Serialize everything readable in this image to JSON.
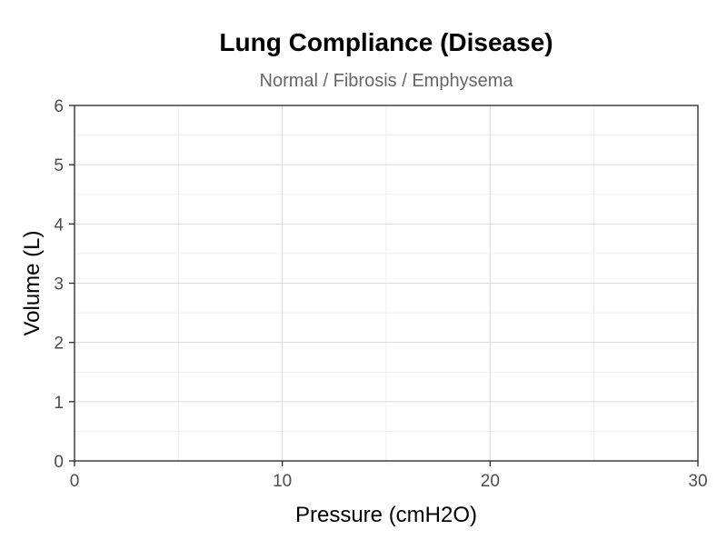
{
  "chart_data": {
    "type": "line",
    "title": "Lung Compliance (Disease)",
    "subtitle": "Normal / Fibrosis / Emphysema",
    "xlabel": "Pressure (cmH2O)",
    "ylabel": "Volume (L)",
    "xlim": [
      0,
      30
    ],
    "ylim": [
      0,
      6
    ],
    "x_ticks": [
      0,
      10,
      20,
      30
    ],
    "y_ticks": [
      0,
      1,
      2,
      3,
      4,
      5,
      6
    ],
    "x_minor_ticks": [
      5,
      15,
      25
    ],
    "y_minor_ticks": [
      0.5,
      1.5,
      2.5,
      3.5,
      4.5,
      5.5
    ],
    "grid": true,
    "series": []
  },
  "colors": {
    "background": "#ffffff",
    "grid_major": "#d9d9d9",
    "grid_minor": "#efefef",
    "axis": "#333333",
    "tick_text": "#4d4d4d",
    "subtitle_text": "#666666"
  }
}
